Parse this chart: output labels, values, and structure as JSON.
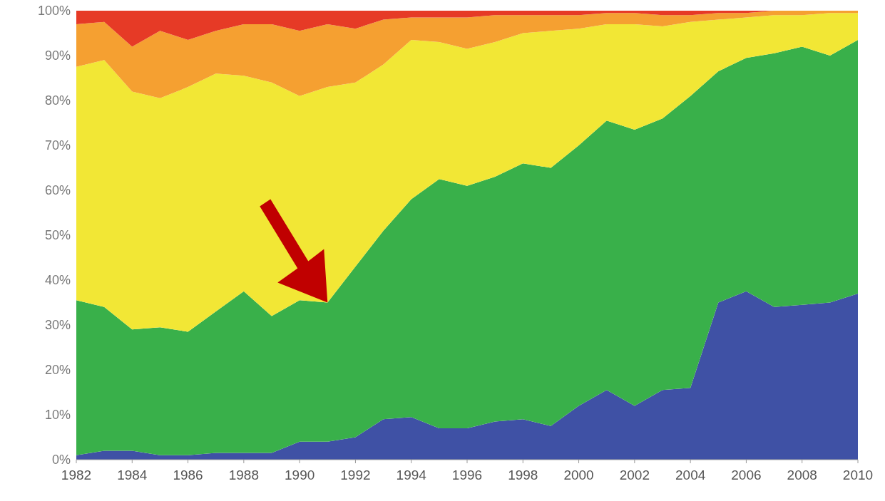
{
  "chart_data": {
    "type": "area",
    "stacked": true,
    "x": [
      1982,
      1983,
      1984,
      1985,
      1986,
      1987,
      1988,
      1989,
      1990,
      1991,
      1992,
      1993,
      1994,
      1995,
      1996,
      1997,
      1998,
      1999,
      2000,
      2001,
      2002,
      2003,
      2004,
      2005,
      2006,
      2007,
      2008,
      2009,
      2010
    ],
    "series": [
      {
        "color": "#3f51a5",
        "values": [
          1,
          2,
          2,
          1,
          1,
          1.5,
          1.5,
          1.5,
          4,
          4,
          5,
          9,
          9.5,
          7,
          7,
          8.5,
          9,
          7.5,
          12,
          15.5,
          12,
          15.5,
          16,
          35,
          37.5,
          34,
          34.5,
          35,
          37
        ]
      },
      {
        "color": "#39b04a",
        "values": [
          34.5,
          32,
          27,
          28.5,
          27.5,
          31.5,
          36,
          30.5,
          31.5,
          31,
          38,
          42,
          48.5,
          55.5,
          54,
          54.5,
          57,
          57.5,
          58,
          60,
          61.5,
          60.5,
          65,
          51.5,
          52,
          56.5,
          57.5,
          55,
          56.5
        ]
      },
      {
        "color": "#f2e735",
        "values": [
          52,
          55,
          53,
          51,
          54.5,
          53,
          48,
          52,
          45.5,
          48,
          41,
          37,
          35.5,
          30.5,
          30.5,
          30,
          29,
          30.5,
          26,
          21.5,
          23.5,
          20.5,
          16.5,
          11.5,
          9,
          8.5,
          7,
          9.5,
          6
        ]
      },
      {
        "color": "#f5a031",
        "values": [
          9.5,
          8.5,
          10,
          15,
          10.5,
          9.5,
          11.5,
          13,
          14.5,
          14,
          12,
          10,
          5,
          5.5,
          7,
          6,
          4,
          3.5,
          3,
          2.5,
          2.5,
          2.5,
          1.5,
          1.5,
          1,
          1,
          1,
          0.5,
          0.5
        ]
      },
      {
        "color": "#e63a26",
        "values": [
          3,
          2.5,
          8,
          4.5,
          6.5,
          4.5,
          3,
          3,
          4.5,
          3,
          4,
          2,
          1.5,
          1.5,
          1.5,
          1,
          1,
          1,
          1,
          0.5,
          0.5,
          1,
          1,
          0.5,
          0.5,
          0,
          0,
          0,
          0
        ]
      }
    ],
    "xlim": [
      1982,
      2010
    ],
    "xticks": [
      1982,
      1984,
      1986,
      1988,
      1990,
      1992,
      1994,
      1996,
      1998,
      2000,
      2002,
      2004,
      2006,
      2008,
      2010
    ],
    "ylim": [
      0,
      100
    ],
    "yticks": [
      {
        "value": 0,
        "label": "0%"
      },
      {
        "value": 10,
        "label": "10%"
      },
      {
        "value": 20,
        "label": "20%"
      },
      {
        "value": 30,
        "label": "30%"
      },
      {
        "value": 40,
        "label": "40%"
      },
      {
        "value": 50,
        "label": "50%"
      },
      {
        "value": 60,
        "label": "60%"
      },
      {
        "value": 70,
        "label": "70%"
      },
      {
        "value": 80,
        "label": "80%"
      },
      {
        "value": 90,
        "label": "90%"
      },
      {
        "value": 100,
        "label": "100%"
      }
    ],
    "grid": false
  }
}
